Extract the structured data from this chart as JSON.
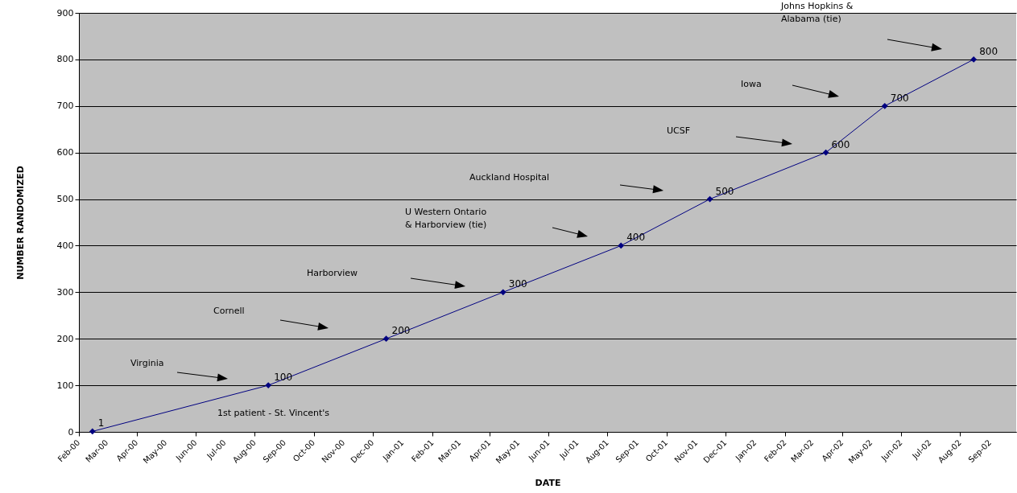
{
  "chart_data": {
    "type": "line",
    "xlabel": "DATE",
    "ylabel": "NUMBER RANDOMIZED",
    "x": [
      "2000-02-15",
      "2000-08-15",
      "2000-12-15",
      "2001-04-15",
      "2001-08-15",
      "2001-11-15",
      "2002-03-15",
      "2002-05-15",
      "2002-08-15"
    ],
    "series": [
      {
        "color": "#000080",
        "values": [
          1,
          100,
          200,
          300,
          400,
          500,
          600,
          700,
          800
        ]
      }
    ],
    "marker": "diamond",
    "line_style": "solid",
    "grid": "y",
    "data_labels": true,
    "xlim": [
      "2000-02-01",
      "2002-09-28"
    ],
    "xticks": [
      {
        "value": "2000-02",
        "label": "Feb-00"
      },
      {
        "value": "2000-03",
        "label": "Mar-00"
      },
      {
        "value": "2000-04",
        "label": "Apr-00"
      },
      {
        "value": "2000-05",
        "label": "May-00"
      },
      {
        "value": "2000-06",
        "label": "Jun-00"
      },
      {
        "value": "2000-07",
        "label": "Jul-00"
      },
      {
        "value": "2000-08",
        "label": "Aug-00"
      },
      {
        "value": "2000-09",
        "label": "Sep-00"
      },
      {
        "value": "2000-10",
        "label": "Oct-00"
      },
      {
        "value": "2000-11",
        "label": "Nov-00"
      },
      {
        "value": "2000-12",
        "label": "Dec-00"
      },
      {
        "value": "2001-01",
        "label": "Jan-01"
      },
      {
        "value": "2001-02",
        "label": "Feb-01"
      },
      {
        "value": "2001-03",
        "label": "Mar-01"
      },
      {
        "value": "2001-04",
        "label": "Apr-01"
      },
      {
        "value": "2001-05",
        "label": "May-01"
      },
      {
        "value": "2001-06",
        "label": "Jun-01"
      },
      {
        "value": "2001-07",
        "label": "Jul-01"
      },
      {
        "value": "2001-08",
        "label": "Aug-01"
      },
      {
        "value": "2001-09",
        "label": "Sep-01"
      },
      {
        "value": "2001-10",
        "label": "Oct-01"
      },
      {
        "value": "2001-11",
        "label": "Nov-01"
      },
      {
        "value": "2001-12",
        "label": "Dec-01"
      },
      {
        "value": "2002-01",
        "label": "Jan-02"
      },
      {
        "value": "2002-02",
        "label": "Feb-02"
      },
      {
        "value": "2002-03",
        "label": "Mar-02"
      },
      {
        "value": "2002-04",
        "label": "Apr-02"
      },
      {
        "value": "2002-05",
        "label": "May-02"
      },
      {
        "value": "2002-06",
        "label": "Jun-02"
      },
      {
        "value": "2002-07",
        "label": "Jul-02"
      },
      {
        "value": "2002-08",
        "label": "Aug-02"
      },
      {
        "value": "2002-09",
        "label": "Sep-02"
      }
    ],
    "ylim": [
      0,
      900
    ],
    "yticks": [
      0,
      100,
      200,
      300,
      400,
      500,
      600,
      700,
      800,
      900
    ],
    "annotations": [
      "Virginia",
      "Cornell",
      "Harborview",
      "U Western Ontario\n& Harborview (tie)",
      "Auckland Hospital",
      "UCSF",
      "Iowa",
      "Johns Hopkins &\nAlabama (tie)",
      "1st patient -  St. Vincent's"
    ]
  }
}
